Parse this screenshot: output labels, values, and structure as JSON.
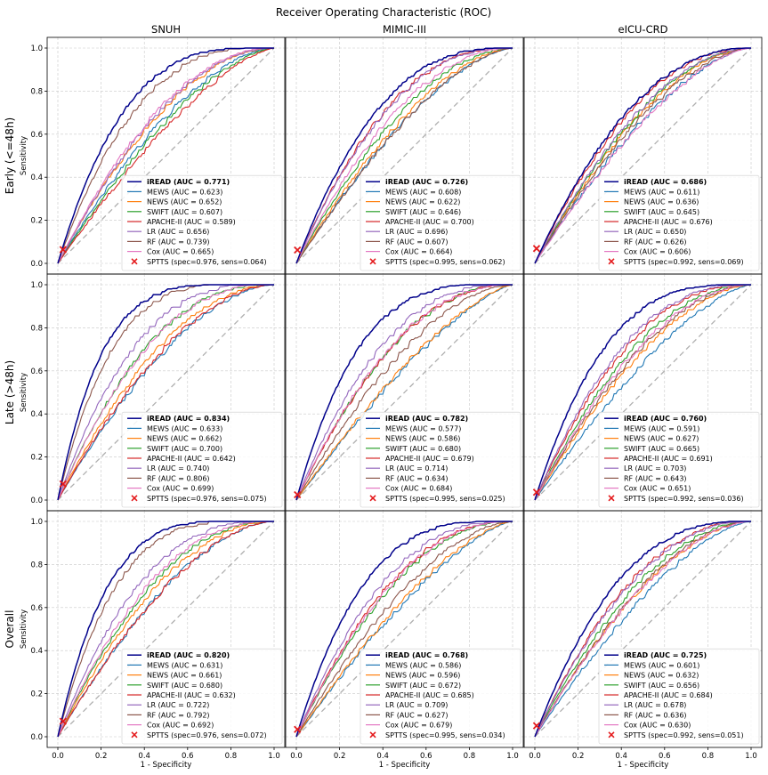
{
  "chart_data": {
    "type": "line",
    "title": "Receiver Operating Characteristic (ROC)",
    "columns": [
      "SNUH",
      "MIMIC-III",
      "eICU-CRD"
    ],
    "rows": [
      "Early (<=48h)",
      "Late (>48h)",
      "Overall"
    ],
    "xlabel": "1 - Specificity",
    "ylabel": "Sensitivity",
    "xlim": [
      0,
      1
    ],
    "ylim": [
      0,
      1
    ],
    "ticks": [
      "0.0",
      "0.2",
      "0.4",
      "0.6",
      "0.8",
      "1.0"
    ],
    "grid": true,
    "legend_position": "lower-right",
    "models": [
      {
        "name": "iREAD",
        "color": "#00008b",
        "bold": true
      },
      {
        "name": "MEWS",
        "color": "#1f77b4"
      },
      {
        "name": "NEWS",
        "color": "#ff7f0e"
      },
      {
        "name": "SWIFT",
        "color": "#2ca02c"
      },
      {
        "name": "APACHE-II",
        "color": "#d62728"
      },
      {
        "name": "LR",
        "color": "#9467bd"
      },
      {
        "name": "RF",
        "color": "#8c564b"
      },
      {
        "name": "Cox",
        "color": "#e377c2"
      }
    ],
    "chance_line": {
      "color": "#b0b0b0",
      "style": "dashed"
    },
    "panels": [
      {
        "row": "Early (<=48h)",
        "col": "SNUH",
        "auc": [
          0.771,
          0.623,
          0.652,
          0.607,
          0.589,
          0.656,
          0.739,
          0.665
        ],
        "auc_text": [
          "0.771",
          "0.623",
          "0.652",
          "0.607",
          "0.589",
          "0.656",
          "0.739",
          "0.665"
        ],
        "sptts": {
          "spec": "0.976",
          "sens": "0.064",
          "x": 0.024,
          "y": 0.064
        }
      },
      {
        "row": "Early (<=48h)",
        "col": "MIMIC-III",
        "auc": [
          0.726,
          0.608,
          0.622,
          0.646,
          0.7,
          0.696,
          0.607,
          0.664
        ],
        "auc_text": [
          "0.726",
          "0.608",
          "0.622",
          "0.646",
          "0.700",
          "0.696",
          "0.607",
          "0.664"
        ],
        "sptts": {
          "spec": "0.995",
          "sens": "0.062",
          "x": 0.005,
          "y": 0.062
        }
      },
      {
        "row": "Early (<=48h)",
        "col": "eICU-CRD",
        "auc": [
          0.686,
          0.611,
          0.636,
          0.645,
          0.676,
          0.65,
          0.626,
          0.606
        ],
        "auc_text": [
          "0.686",
          "0.611",
          "0.636",
          "0.645",
          "0.676",
          "0.650",
          "0.626",
          "0.606"
        ],
        "sptts": {
          "spec": "0.992",
          "sens": "0.069",
          "x": 0.008,
          "y": 0.069
        }
      },
      {
        "row": "Late (>48h)",
        "col": "SNUH",
        "auc": [
          0.834,
          0.633,
          0.662,
          0.7,
          0.642,
          0.74,
          0.806,
          0.699
        ],
        "auc_text": [
          "0.834",
          "0.633",
          "0.662",
          "0.700",
          "0.642",
          "0.740",
          "0.806",
          "0.699"
        ],
        "sptts": {
          "spec": "0.976",
          "sens": "0.075",
          "x": 0.024,
          "y": 0.075
        }
      },
      {
        "row": "Late (>48h)",
        "col": "MIMIC-III",
        "auc": [
          0.782,
          0.577,
          0.586,
          0.68,
          0.679,
          0.714,
          0.634,
          0.684
        ],
        "auc_text": [
          "0.782",
          "0.577",
          "0.586",
          "0.680",
          "0.679",
          "0.714",
          "0.634",
          "0.684"
        ],
        "sptts": {
          "spec": "0.995",
          "sens": "0.025",
          "x": 0.005,
          "y": 0.025
        }
      },
      {
        "row": "Late (>48h)",
        "col": "eICU-CRD",
        "auc": [
          0.76,
          0.591,
          0.627,
          0.665,
          0.691,
          0.703,
          0.643,
          0.651
        ],
        "auc_text": [
          "0.760",
          "0.591",
          "0.627",
          "0.665",
          "0.691",
          "0.703",
          "0.643",
          "0.651"
        ],
        "sptts": {
          "spec": "0.992",
          "sens": "0.036",
          "x": 0.008,
          "y": 0.036
        }
      },
      {
        "row": "Overall",
        "col": "SNUH",
        "auc": [
          0.82,
          0.631,
          0.661,
          0.68,
          0.632,
          0.722,
          0.792,
          0.692
        ],
        "auc_text": [
          "0.820",
          "0.631",
          "0.661",
          "0.680",
          "0.632",
          "0.722",
          "0.792",
          "0.692"
        ],
        "sptts": {
          "spec": "0.976",
          "sens": "0.072",
          "x": 0.024,
          "y": 0.072
        }
      },
      {
        "row": "Overall",
        "col": "MIMIC-III",
        "auc": [
          0.768,
          0.586,
          0.596,
          0.672,
          0.685,
          0.709,
          0.627,
          0.679
        ],
        "auc_text": [
          "0.768",
          "0.586",
          "0.596",
          "0.672",
          "0.685",
          "0.709",
          "0.627",
          "0.679"
        ],
        "sptts": {
          "spec": "0.995",
          "sens": "0.034",
          "x": 0.005,
          "y": 0.034
        }
      },
      {
        "row": "Overall",
        "col": "eICU-CRD",
        "auc": [
          0.725,
          0.601,
          0.632,
          0.656,
          0.684,
          0.678,
          0.636,
          0.63
        ],
        "auc_text": [
          "0.725",
          "0.601",
          "0.632",
          "0.656",
          "0.684",
          "0.678",
          "0.636",
          "0.630"
        ],
        "sptts": {
          "spec": "0.992",
          "sens": "0.051",
          "x": 0.008,
          "y": 0.051
        }
      }
    ]
  }
}
